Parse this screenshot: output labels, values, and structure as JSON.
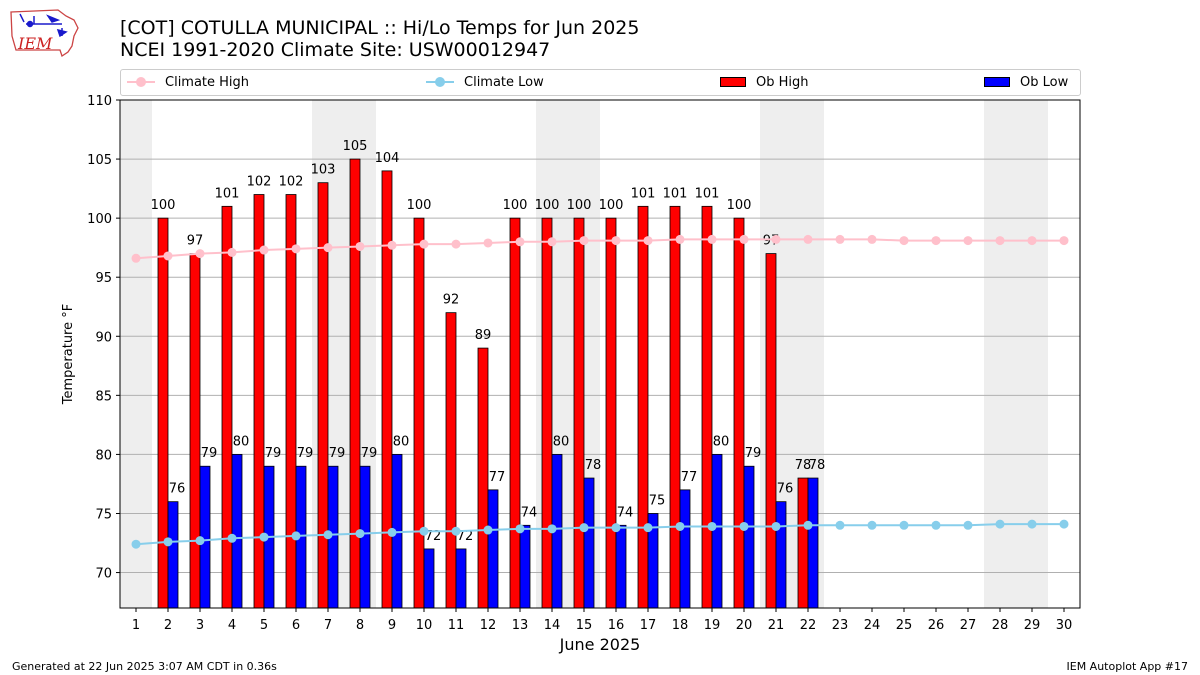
{
  "header": {
    "title_line1": "[COT] COTULLA MUNICIPAL :: Hi/Lo Temps for Jun 2025",
    "title_line2": "NCEI 1991-2020 Climate Site: USW00012947"
  },
  "logo": {
    "text": "IEM"
  },
  "legend": {
    "climate_high": "Climate High",
    "climate_low": "Climate Low",
    "ob_high": "Ob High",
    "ob_low": "Ob Low"
  },
  "footer": {
    "left": "Generated at 22 Jun 2025 3:07 AM CDT in 0.36s",
    "right": "IEM Autoplot App #17"
  },
  "chart_data": {
    "type": "bar",
    "xlabel": "June 2025",
    "ylabel": "Temperature °F",
    "ylim": [
      67,
      110
    ],
    "yticks": [
      70,
      75,
      80,
      85,
      90,
      95,
      100,
      105,
      110
    ],
    "grid": true,
    "legend_position": "top",
    "categories": [
      1,
      2,
      3,
      4,
      5,
      6,
      7,
      8,
      9,
      10,
      11,
      12,
      13,
      14,
      15,
      16,
      17,
      18,
      19,
      20,
      21,
      22,
      23,
      24,
      25,
      26,
      27,
      28,
      29,
      30
    ],
    "weekend_shaded_days": [
      1,
      7,
      8,
      14,
      15,
      21,
      22,
      28,
      29
    ],
    "series": [
      {
        "name": "Ob High",
        "kind": "bar",
        "color": "#ff0000",
        "values": [
          null,
          100,
          97,
          101,
          102,
          102,
          103,
          105,
          104,
          100,
          92,
          89,
          100,
          100,
          100,
          100,
          101,
          101,
          101,
          100,
          97,
          78,
          null,
          null,
          null,
          null,
          null,
          null,
          null,
          null
        ]
      },
      {
        "name": "Ob Low",
        "kind": "bar",
        "color": "#0000ff",
        "values": [
          null,
          76,
          79,
          80,
          79,
          79,
          79,
          79,
          80,
          72,
          72,
          77,
          74,
          80,
          78,
          74,
          75,
          77,
          80,
          79,
          76,
          78,
          null,
          null,
          null,
          null,
          null,
          null,
          null,
          null
        ]
      },
      {
        "name": "Climate High",
        "kind": "line",
        "color": "#ffc0cb",
        "values": [
          96.6,
          96.8,
          97.0,
          97.1,
          97.3,
          97.4,
          97.5,
          97.6,
          97.7,
          97.8,
          97.8,
          97.9,
          98.0,
          98.0,
          98.1,
          98.1,
          98.1,
          98.2,
          98.2,
          98.2,
          98.2,
          98.2,
          98.2,
          98.2,
          98.1,
          98.1,
          98.1,
          98.1,
          98.1,
          98.1
        ]
      },
      {
        "name": "Climate Low",
        "kind": "line",
        "color": "#87ceeb",
        "values": [
          72.4,
          72.6,
          72.7,
          72.9,
          73.0,
          73.1,
          73.2,
          73.3,
          73.4,
          73.5,
          73.5,
          73.6,
          73.7,
          73.7,
          73.8,
          73.8,
          73.8,
          73.9,
          73.9,
          73.9,
          73.9,
          74.0,
          74.0,
          74.0,
          74.0,
          74.0,
          74.0,
          74.1,
          74.1,
          74.1
        ]
      }
    ]
  }
}
